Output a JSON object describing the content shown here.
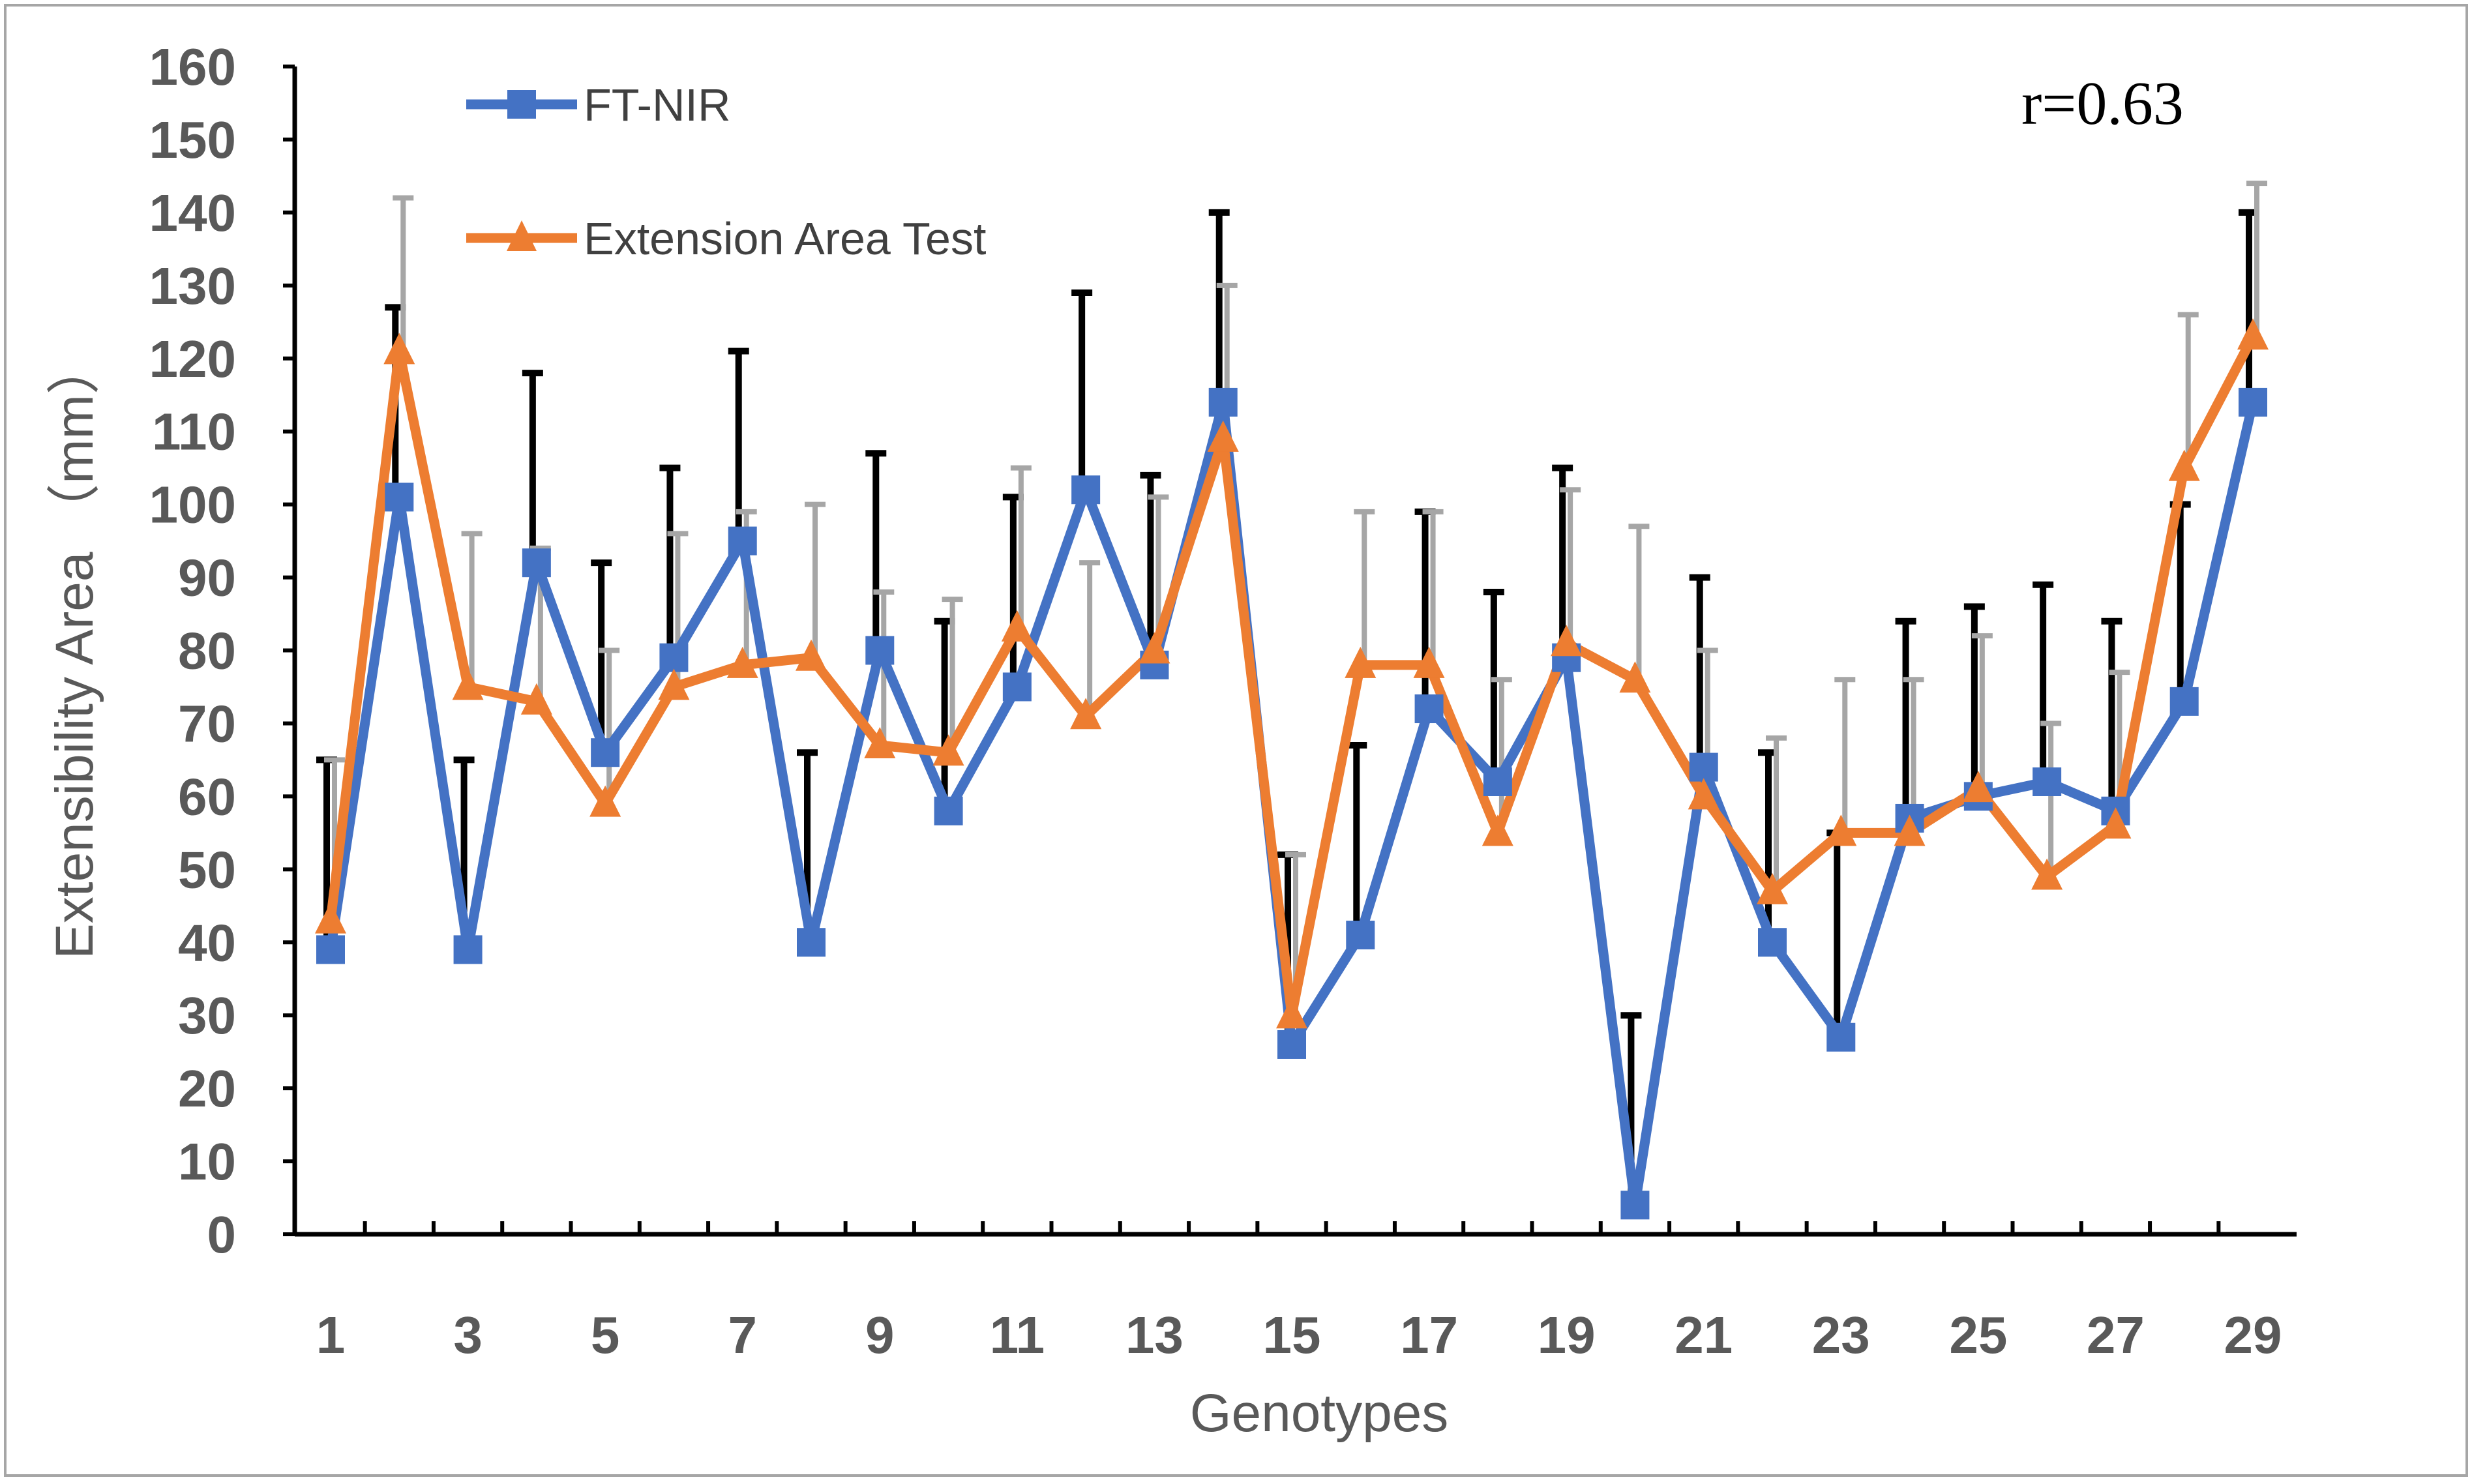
{
  "chart_data": {
    "type": "line",
    "title": "",
    "xlabel": "Genotypes",
    "ylabel": "Extensibility Area （mm）",
    "annotation": "r=0.63",
    "ylim": [
      0,
      160
    ],
    "xlim": [
      1,
      29
    ],
    "y_ticks": [
      0,
      10,
      20,
      30,
      40,
      50,
      60,
      70,
      80,
      90,
      100,
      110,
      120,
      130,
      140,
      150,
      160
    ],
    "x_tick_labels": [
      "1",
      "3",
      "5",
      "7",
      "9",
      "11",
      "13",
      "15",
      "17",
      "19",
      "21",
      "23",
      "25",
      "27",
      "29"
    ],
    "x": [
      1,
      2,
      3,
      4,
      5,
      6,
      7,
      8,
      9,
      10,
      11,
      12,
      13,
      14,
      15,
      16,
      17,
      18,
      19,
      20,
      21,
      22,
      23,
      24,
      25,
      26,
      27,
      28,
      29
    ],
    "legend_position": "top-left",
    "series": [
      {
        "name": "FT-NIR",
        "color": "#4472C4",
        "marker": "square",
        "error_color": "#000000",
        "values": [
          39,
          101,
          39,
          92,
          66,
          79,
          95,
          40,
          80,
          58,
          75,
          102,
          78,
          114,
          26,
          41,
          72,
          62,
          79,
          4,
          64,
          40,
          27,
          57,
          60,
          62,
          58,
          73,
          114
        ],
        "error_upper": [
          65,
          127,
          65,
          118,
          92,
          105,
          121,
          66,
          107,
          84,
          101,
          129,
          104,
          140,
          52,
          67,
          99,
          88,
          105,
          30,
          90,
          66,
          55,
          84,
          86,
          89,
          84,
          100,
          140
        ]
      },
      {
        "name": "Extension Area Test",
        "color": "#ED7D31",
        "marker": "triangle",
        "error_color": "#A6A6A6",
        "values": [
          43,
          121,
          75,
          73,
          59,
          75,
          78,
          79,
          67,
          66,
          83,
          71,
          80,
          109,
          30,
          78,
          78,
          55,
          81,
          76,
          60,
          47,
          55,
          55,
          61,
          49,
          56,
          105,
          123
        ],
        "error_upper": [
          65,
          142,
          96,
          94,
          80,
          96,
          99,
          100,
          88,
          87,
          105,
          92,
          101,
          130,
          52,
          99,
          99,
          76,
          102,
          97,
          80,
          68,
          76,
          76,
          82,
          70,
          77,
          126,
          144
        ]
      }
    ]
  }
}
